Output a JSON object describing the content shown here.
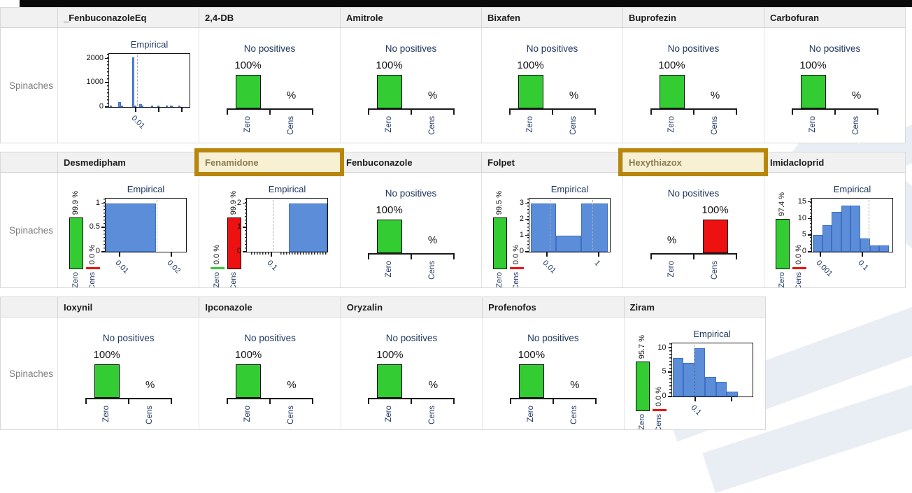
{
  "row_label": "Spinaches",
  "highlighted_panels": [
    "Fenamidone",
    "Hexythiazox"
  ],
  "colors": {
    "green": "#33CC33",
    "red": "#EE1111",
    "blue": "#5B8DD9",
    "blue_border": "#3E6FC4",
    "gold_border": "#B8860B",
    "gold_fill": "#F7F0D3",
    "gold_text": "#8B7D52",
    "navy": "#1C355E",
    "header_bg": "#F1F1F1"
  },
  "chart_data": {
    "type": "small-multiples",
    "description": "Trellis of per-substance residue panels for commodity Spinaches. Panels are either Zero/Cens percentage bars or an Empirical histogram (log x scale) with a Zero/Cens mini bar chart.",
    "rows": [
      [
        {
          "panel": "_FenbuconazoleEq",
          "type": "empirical",
          "mini": null,
          "hist": {
            "title": "Empirical",
            "ymax": 2200,
            "y_ticks": [
              0,
              1000,
              2000
            ],
            "bars": [
              {
                "x": 0.01,
                "w": 0.025,
                "v": 60
              },
              {
                "x": 0.115,
                "w": 0.035,
                "v": 200
              },
              {
                "x": 0.15,
                "w": 0.025,
                "v": 45
              },
              {
                "x": 0.285,
                "w": 0.03,
                "v": 2050
              },
              {
                "x": 0.315,
                "w": 0.025,
                "v": 70
              },
              {
                "x": 0.375,
                "w": 0.03,
                "v": 120
              },
              {
                "x": 0.405,
                "w": 0.025,
                "v": 40
              },
              {
                "x": 0.52,
                "w": 0.03,
                "v": 35
              },
              {
                "x": 0.6,
                "w": 0.025,
                "v": 30
              },
              {
                "x": 0.7,
                "w": 0.03,
                "v": 35
              },
              {
                "x": 0.76,
                "w": 0.035,
                "v": 45
              },
              {
                "x": 0.86,
                "w": 0.03,
                "v": 40
              }
            ],
            "x_ticks": [
              {
                "label": "0.01",
                "x": 0.33
              },
              {
                "label": "",
                "x": 0.62
              },
              {
                "label": "",
                "x": 0.9
              }
            ],
            "dashed": [
              0.345
            ],
            "x_minor": []
          }
        },
        {
          "panel": "2,4-DB",
          "type": "zero_cens",
          "subtitle": "No positives",
          "categories": [
            "Zero",
            "Cens"
          ],
          "values": [
            100,
            0
          ],
          "value_labels": [
            "100%",
            "%"
          ],
          "bar_colors": [
            "green",
            null
          ]
        },
        {
          "panel": "Amitrole",
          "type": "zero_cens",
          "subtitle": "No positives",
          "categories": [
            "Zero",
            "Cens"
          ],
          "values": [
            100,
            0
          ],
          "value_labels": [
            "100%",
            "%"
          ],
          "bar_colors": [
            "green",
            null
          ]
        },
        {
          "panel": "Bixafen",
          "type": "zero_cens",
          "subtitle": "No positives",
          "categories": [
            "Zero",
            "Cens"
          ],
          "values": [
            100,
            0
          ],
          "value_labels": [
            "100%",
            "%"
          ],
          "bar_colors": [
            "green",
            null
          ]
        },
        {
          "panel": "Buprofezin",
          "type": "zero_cens",
          "subtitle": "No positives",
          "categories": [
            "Zero",
            "Cens"
          ],
          "values": [
            100,
            0
          ],
          "value_labels": [
            "100%",
            "%"
          ],
          "bar_colors": [
            "green",
            null
          ]
        },
        {
          "panel": "Carbofuran",
          "type": "zero_cens",
          "subtitle": "No positives",
          "categories": [
            "Zero",
            "Cens"
          ],
          "values": [
            100,
            0
          ],
          "value_labels": [
            "100%",
            "%"
          ],
          "bar_colors": [
            "green",
            null
          ]
        }
      ],
      [
        {
          "panel": "Desmedipham",
          "type": "empirical",
          "mini": {
            "categories": [
              "Zero",
              "Cens"
            ],
            "values": [
              99.9,
              0
            ],
            "labels": [
              "99.9 %",
              "0.0 %"
            ],
            "colors": [
              "green",
              "red"
            ]
          },
          "hist": {
            "title": "Empirical",
            "ymax": 1.1,
            "y_ticks": [
              0,
              0.5,
              1
            ],
            "bars": [
              {
                "x": 0,
                "w": 0.63,
                "v": 1
              }
            ],
            "x_ticks": [
              {
                "label": "0.01",
                "x": 0.17
              },
              {
                "label": "0.02",
                "x": 0.82
              }
            ],
            "dashed": [
              0.635
            ],
            "x_minor": []
          }
        },
        {
          "panel": "Fenamidone",
          "type": "empirical",
          "mini": {
            "categories": [
              "Zero",
              "Cens"
            ],
            "values": [
              0,
              99.9
            ],
            "labels": [
              "0.0 %",
              "99.9 %"
            ],
            "colors": [
              "green",
              "red"
            ]
          },
          "hist": {
            "title": "Empirical",
            "ymax": 2.2,
            "y_ticks": [
              0,
              1,
              2
            ],
            "bars": [
              {
                "x": 0.52,
                "w": 0.48,
                "v": 2
              }
            ],
            "x_ticks": [
              {
                "label": "0.1",
                "x": 0.3
              }
            ],
            "dashed": [
              0.32
            ],
            "x_minor": [
              [
                0.05,
                0.28
              ],
              [
                0.42,
                0.99
              ]
            ]
          }
        },
        {
          "panel": "Fenbuconazole",
          "type": "zero_cens",
          "subtitle": "No positives",
          "categories": [
            "Zero",
            "Cens"
          ],
          "values": [
            100,
            0
          ],
          "value_labels": [
            "100%",
            "%"
          ],
          "bar_colors": [
            "green",
            null
          ]
        },
        {
          "panel": "Folpet",
          "type": "empirical",
          "mini": {
            "categories": [
              "Zero",
              "Cens"
            ],
            "values": [
              99.5,
              0
            ],
            "labels": [
              "99.5 %",
              "0.0 %"
            ],
            "colors": [
              "green",
              "red"
            ]
          },
          "hist": {
            "title": "Empirical",
            "ymax": 3.3,
            "y_ticks": [
              0,
              1,
              2,
              3
            ],
            "bars": [
              {
                "x": 0.02,
                "w": 0.31,
                "v": 3
              },
              {
                "x": 0.33,
                "w": 0.31,
                "v": 1
              },
              {
                "x": 0.64,
                "w": 0.33,
                "v": 3
              }
            ],
            "x_ticks": [
              {
                "label": "0.01",
                "x": 0.22
              },
              {
                "label": "1",
                "x": 0.86
              }
            ],
            "dashed": [
              0.25,
              0.78
            ],
            "x_minor": []
          }
        },
        {
          "panel": "Hexythiazox",
          "type": "zero_cens",
          "subtitle": "No positives",
          "categories": [
            "Zero",
            "Cens"
          ],
          "values": [
            0,
            100
          ],
          "value_labels": [
            "%",
            "100%"
          ],
          "bar_colors": [
            null,
            "red"
          ]
        },
        {
          "panel": "Imidacloprid",
          "type": "empirical",
          "mini": {
            "categories": [
              "Zero",
              "Cens"
            ],
            "values": [
              97.4,
              0
            ],
            "labels": [
              "97.4 %",
              "0.0 %"
            ],
            "colors": [
              "green",
              "red"
            ]
          },
          "hist": {
            "title": "Empirical",
            "ymax": 16,
            "y_ticks": [
              0,
              5,
              10,
              15
            ],
            "bars": [
              {
                "x": 0.01,
                "w": 0.118,
                "v": 5
              },
              {
                "x": 0.128,
                "w": 0.118,
                "v": 8
              },
              {
                "x": 0.246,
                "w": 0.118,
                "v": 12
              },
              {
                "x": 0.364,
                "w": 0.118,
                "v": 14
              },
              {
                "x": 0.482,
                "w": 0.118,
                "v": 14
              },
              {
                "x": 0.6,
                "w": 0.118,
                "v": 4
              },
              {
                "x": 0.718,
                "w": 0.118,
                "v": 2
              },
              {
                "x": 0.836,
                "w": 0.118,
                "v": 2
              }
            ],
            "x_ticks": [
              {
                "label": "0.001",
                "x": 0.105
              },
              {
                "label": "0.1",
                "x": 0.63
              }
            ],
            "dashed": [
              0.7
            ],
            "x_minor": []
          }
        }
      ],
      [
        {
          "panel": "Ioxynil",
          "type": "zero_cens",
          "subtitle": "No positives",
          "categories": [
            "Zero",
            "Cens"
          ],
          "values": [
            100,
            0
          ],
          "value_labels": [
            "100%",
            "%"
          ],
          "bar_colors": [
            "green",
            null
          ]
        },
        {
          "panel": "Ipconazole",
          "type": "zero_cens",
          "subtitle": "No positives",
          "categories": [
            "Zero",
            "Cens"
          ],
          "values": [
            100,
            0
          ],
          "value_labels": [
            "100%",
            "%"
          ],
          "bar_colors": [
            "green",
            null
          ]
        },
        {
          "panel": "Oryzalin",
          "type": "zero_cens",
          "subtitle": "No positives",
          "categories": [
            "Zero",
            "Cens"
          ],
          "values": [
            100,
            0
          ],
          "value_labels": [
            "100%",
            "%"
          ],
          "bar_colors": [
            "green",
            null
          ]
        },
        {
          "panel": "Profenofos",
          "type": "zero_cens",
          "subtitle": "No positives",
          "categories": [
            "Zero",
            "Cens"
          ],
          "values": [
            100,
            0
          ],
          "value_labels": [
            "100%",
            "%"
          ],
          "bar_colors": [
            "green",
            null
          ]
        },
        {
          "panel": "Ziram",
          "type": "empirical",
          "mini": {
            "categories": [
              "Zero",
              "Cens"
            ],
            "values": [
              95.7,
              0
            ],
            "labels": [
              "95.7 %",
              "0.0 %"
            ],
            "colors": [
              "green",
              "red"
            ]
          },
          "hist": {
            "title": "Empirical",
            "ymax": 11,
            "y_ticks": [
              0,
              5,
              10
            ],
            "bars": [
              {
                "x": 0.01,
                "w": 0.135,
                "v": 8
              },
              {
                "x": 0.145,
                "w": 0.135,
                "v": 7
              },
              {
                "x": 0.28,
                "w": 0.135,
                "v": 10
              },
              {
                "x": 0.415,
                "w": 0.135,
                "v": 4
              },
              {
                "x": 0.55,
                "w": 0.135,
                "v": 3
              },
              {
                "x": 0.685,
                "w": 0.135,
                "v": 1
              }
            ],
            "x_ticks": [
              {
                "label": "0.1",
                "x": 0.29
              },
              {
                "label": "",
                "x": 0.745
              }
            ],
            "dashed": [
              0.27
            ],
            "x_minor": []
          }
        }
      ]
    ]
  }
}
